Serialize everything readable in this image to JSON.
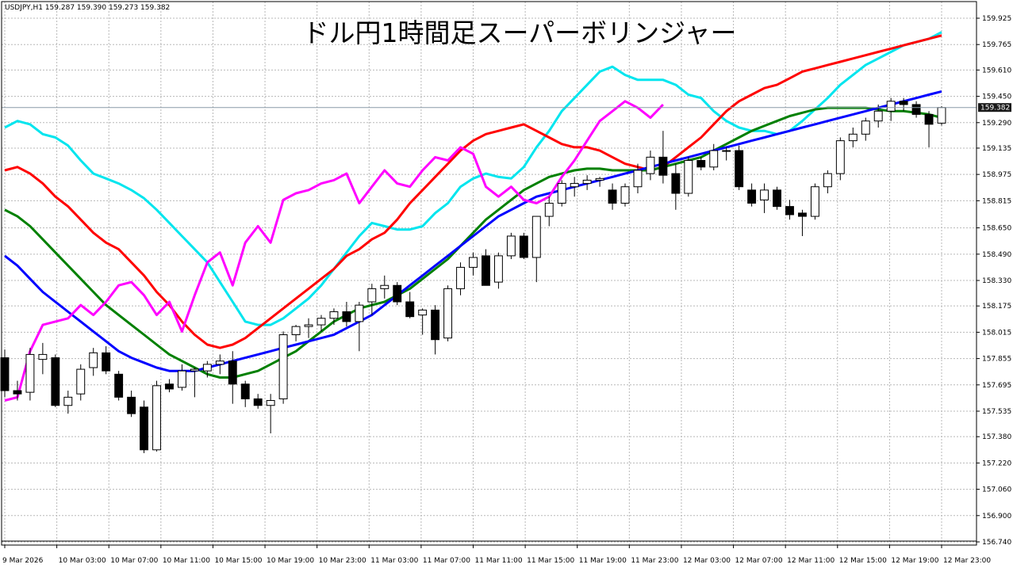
{
  "header": {
    "symbol_info": "USDJPY,H1  159.287 159.390 159.273 159.382",
    "title": "ドル円1時間足スーパーボリンジャー"
  },
  "chart_data": {
    "type": "candlestick",
    "symbol": "USDJPY",
    "timeframe": "H1",
    "current_price": 159.382,
    "current_price_label": "159.382",
    "ylim": [
      156.74,
      159.95
    ],
    "y_ticks": [
      "159.925",
      "159.765",
      "159.610",
      "159.450",
      "159.290",
      "159.135",
      "158.975",
      "158.815",
      "158.650",
      "158.490",
      "158.330",
      "158.175",
      "158.015",
      "157.855",
      "157.695",
      "157.535",
      "157.380",
      "157.220",
      "157.060",
      "156.900",
      "156.740"
    ],
    "x_ticks": [
      "9 Mar 2026",
      "10 Mar 03:00",
      "10 Mar 07:00",
      "10 Mar 11:00",
      "10 Mar 15:00",
      "10 Mar 19:00",
      "10 Mar 23:00",
      "11 Mar 03:00",
      "11 Mar 07:00",
      "11 Mar 11:00",
      "11 Mar 15:00",
      "11 Mar 19:00",
      "11 Mar 23:00",
      "12 Mar 03:00",
      "12 Mar 07:00",
      "12 Mar 11:00",
      "12 Mar 15:00",
      "12 Mar 19:00",
      "12 Mar 23:00"
    ],
    "grid": true,
    "candles": [
      [
        157.86,
        157.91,
        157.62,
        157.66
      ],
      [
        157.66,
        157.72,
        157.6,
        157.64
      ],
      [
        157.65,
        157.92,
        157.6,
        157.88
      ],
      [
        157.85,
        157.95,
        157.76,
        157.88
      ],
      [
        157.86,
        157.88,
        157.56,
        157.57
      ],
      [
        157.57,
        157.66,
        157.52,
        157.62
      ],
      [
        157.64,
        157.82,
        157.6,
        157.79
      ],
      [
        157.8,
        157.92,
        157.75,
        157.89
      ],
      [
        157.89,
        157.93,
        157.76,
        157.78
      ],
      [
        157.76,
        157.78,
        157.6,
        157.62
      ],
      [
        157.62,
        157.66,
        157.5,
        157.52
      ],
      [
        157.56,
        157.6,
        157.28,
        157.3
      ],
      [
        157.3,
        157.72,
        157.29,
        157.69
      ],
      [
        157.7,
        157.73,
        157.65,
        157.67
      ],
      [
        157.68,
        157.82,
        157.66,
        157.78
      ],
      [
        157.78,
        157.8,
        157.62,
        157.79
      ],
      [
        157.78,
        157.84,
        157.74,
        157.82
      ],
      [
        157.82,
        157.88,
        157.76,
        157.84
      ],
      [
        157.84,
        157.9,
        157.58,
        157.7
      ],
      [
        157.7,
        157.72,
        157.56,
        157.61
      ],
      [
        157.61,
        157.64,
        157.55,
        157.57
      ],
      [
        157.57,
        157.64,
        157.4,
        157.6
      ],
      [
        157.61,
        158.02,
        157.58,
        158.0
      ],
      [
        158.0,
        158.06,
        157.96,
        158.05
      ],
      [
        158.05,
        158.1,
        157.98,
        158.06
      ],
      [
        158.06,
        158.12,
        158.02,
        158.1
      ],
      [
        158.1,
        158.16,
        158.06,
        158.14
      ],
      [
        158.14,
        158.2,
        158.05,
        158.08
      ],
      [
        158.08,
        158.2,
        157.9,
        158.18
      ],
      [
        158.2,
        158.31,
        158.12,
        158.28
      ],
      [
        158.28,
        158.36,
        158.22,
        158.3
      ],
      [
        158.3,
        158.32,
        158.18,
        158.2
      ],
      [
        158.2,
        158.26,
        158.1,
        158.11
      ],
      [
        158.12,
        158.16,
        158.0,
        158.15
      ],
      [
        158.15,
        158.18,
        157.88,
        157.97
      ],
      [
        157.98,
        158.3,
        157.96,
        158.28
      ],
      [
        158.28,
        158.44,
        158.24,
        158.41
      ],
      [
        158.41,
        158.5,
        158.36,
        158.47
      ],
      [
        158.48,
        158.52,
        158.3,
        158.3
      ],
      [
        158.32,
        158.5,
        158.28,
        158.48
      ],
      [
        158.48,
        158.62,
        158.46,
        158.6
      ],
      [
        158.6,
        158.62,
        158.46,
        158.47
      ],
      [
        158.47,
        158.72,
        158.32,
        158.72
      ],
      [
        158.72,
        158.84,
        158.66,
        158.8
      ],
      [
        158.8,
        158.94,
        158.78,
        158.92
      ],
      [
        158.9,
        158.96,
        158.84,
        158.92
      ],
      [
        158.92,
        158.97,
        158.88,
        158.94
      ],
      [
        158.94,
        158.96,
        158.9,
        158.95
      ],
      [
        158.88,
        158.92,
        158.76,
        158.8
      ],
      [
        158.8,
        158.92,
        158.78,
        158.9
      ],
      [
        158.9,
        159.04,
        158.86,
        159.0
      ],
      [
        158.98,
        159.12,
        158.94,
        159.08
      ],
      [
        159.08,
        159.24,
        158.92,
        158.97
      ],
      [
        158.98,
        159.04,
        158.76,
        158.86
      ],
      [
        158.86,
        159.08,
        158.84,
        159.06
      ],
      [
        159.06,
        159.08,
        159.0,
        159.02
      ],
      [
        159.02,
        159.16,
        159.0,
        159.12
      ],
      [
        159.12,
        159.14,
        159.06,
        159.12
      ],
      [
        159.12,
        159.15,
        158.88,
        158.9
      ],
      [
        158.88,
        158.92,
        158.78,
        158.8
      ],
      [
        158.82,
        158.92,
        158.74,
        158.88
      ],
      [
        158.88,
        158.9,
        158.76,
        158.78
      ],
      [
        158.78,
        158.82,
        158.7,
        158.73
      ],
      [
        158.74,
        158.76,
        158.6,
        158.72
      ],
      [
        158.72,
        158.92,
        158.7,
        158.9
      ],
      [
        158.9,
        159.0,
        158.86,
        158.98
      ],
      [
        158.98,
        159.2,
        158.94,
        159.18
      ],
      [
        159.18,
        159.26,
        159.14,
        159.22
      ],
      [
        159.22,
        159.32,
        159.18,
        159.3
      ],
      [
        159.3,
        159.4,
        159.26,
        159.36
      ],
      [
        159.36,
        159.44,
        159.3,
        159.42
      ],
      [
        159.42,
        159.44,
        159.36,
        159.4
      ],
      [
        159.4,
        159.42,
        159.32,
        159.34
      ],
      [
        159.34,
        159.36,
        159.14,
        159.28
      ],
      [
        159.287,
        159.39,
        159.273,
        159.382
      ]
    ],
    "series": [
      {
        "name": "",
        "color": "#00e5ee",
        "values": [
          159.26,
          159.3,
          159.28,
          159.22,
          159.2,
          159.15,
          159.06,
          158.98,
          158.95,
          158.92,
          158.88,
          158.83,
          158.76,
          158.68,
          158.6,
          158.52,
          158.44,
          158.32,
          158.2,
          158.08,
          158.06,
          158.06,
          158.1,
          158.16,
          158.22,
          158.3,
          158.4,
          158.5,
          158.6,
          158.68,
          158.66,
          158.64,
          158.64,
          158.66,
          158.74,
          158.8,
          158.9,
          158.95,
          158.98,
          158.96,
          158.95,
          159.02,
          159.14,
          159.24,
          159.36,
          159.44,
          159.52,
          159.6,
          159.63,
          159.58,
          159.55,
          159.55,
          159.55,
          159.52,
          159.46,
          159.44,
          159.36,
          159.3,
          159.26,
          159.24,
          159.24,
          159.22,
          159.24,
          159.3,
          159.37,
          159.44,
          159.52,
          159.58,
          159.64,
          159.68,
          159.72,
          159.76,
          159.78,
          159.8,
          159.84
        ]
      },
      {
        "name": "",
        "color": "#ff0000",
        "values": [
          159.0,
          159.02,
          158.98,
          158.92,
          158.84,
          158.78,
          158.7,
          158.62,
          158.56,
          158.52,
          158.44,
          158.36,
          158.26,
          158.18,
          158.08,
          158.0,
          157.94,
          157.92,
          157.94,
          157.98,
          158.04,
          158.1,
          158.16,
          158.22,
          158.28,
          158.34,
          158.4,
          158.48,
          158.52,
          158.58,
          158.62,
          158.7,
          158.8,
          158.88,
          158.96,
          159.04,
          159.12,
          159.18,
          159.22,
          159.24,
          159.26,
          159.28,
          159.24,
          159.2,
          159.16,
          159.14,
          159.14,
          159.12,
          159.08,
          159.04,
          159.02,
          159.0,
          159.02,
          159.08,
          159.14,
          159.2,
          159.28,
          159.36,
          159.42,
          159.46,
          159.5,
          159.52,
          159.56,
          159.6,
          159.62,
          159.64,
          159.66,
          159.68,
          159.7,
          159.72,
          159.74,
          159.76,
          159.78,
          159.8,
          159.82
        ]
      },
      {
        "name": "",
        "color": "#008000",
        "values": [
          158.76,
          158.72,
          158.66,
          158.58,
          158.5,
          158.42,
          158.34,
          158.26,
          158.18,
          158.12,
          158.06,
          158.0,
          157.94,
          157.88,
          157.84,
          157.8,
          157.76,
          157.74,
          157.74,
          157.76,
          157.78,
          157.82,
          157.86,
          157.9,
          157.96,
          158.02,
          158.08,
          158.12,
          158.16,
          158.18,
          158.2,
          158.24,
          158.28,
          158.34,
          158.4,
          158.46,
          158.54,
          158.62,
          158.7,
          158.76,
          158.82,
          158.88,
          158.92,
          158.96,
          158.98,
          159.0,
          159.01,
          159.01,
          159.0,
          159.0,
          159.0,
          159.0,
          159.02,
          159.04,
          159.06,
          159.08,
          159.12,
          159.16,
          159.2,
          159.24,
          159.27,
          159.3,
          159.33,
          159.35,
          159.37,
          159.38,
          159.38,
          159.38,
          159.38,
          159.37,
          159.36,
          159.36,
          159.35,
          159.34,
          159.32
        ]
      },
      {
        "name": "",
        "color": "#0000ff",
        "values": [
          158.48,
          158.42,
          158.34,
          158.26,
          158.2,
          158.14,
          158.08,
          158.02,
          157.96,
          157.9,
          157.86,
          157.83,
          157.8,
          157.78,
          157.78,
          157.78,
          157.8,
          157.82,
          157.84,
          157.86,
          157.88,
          157.9,
          157.92,
          157.94,
          157.96,
          157.98,
          158.0,
          158.04,
          158.08,
          158.12,
          158.18,
          158.24,
          158.3,
          158.36,
          158.42,
          158.48,
          158.54,
          158.6,
          158.66,
          158.72,
          158.76,
          158.8,
          158.84,
          158.86,
          158.88,
          158.9,
          158.92,
          158.94,
          158.96,
          158.98,
          159.0,
          159.02,
          159.04,
          159.06,
          159.08,
          159.1,
          159.12,
          159.14,
          159.16,
          159.18,
          159.2,
          159.22,
          159.24,
          159.26,
          159.28,
          159.3,
          159.32,
          159.34,
          159.36,
          159.38,
          159.4,
          159.42,
          159.44,
          159.46,
          159.48
        ]
      },
      {
        "name": "",
        "color": "#ff00ff",
        "values": [
          157.6,
          157.62,
          157.9,
          158.06,
          158.08,
          158.1,
          158.18,
          158.12,
          158.2,
          158.3,
          158.32,
          158.24,
          158.12,
          158.2,
          158.02,
          158.24,
          158.44,
          158.5,
          158.3,
          158.56,
          158.66,
          158.56,
          158.82,
          158.86,
          158.88,
          158.92,
          158.94,
          158.98,
          158.8,
          158.9,
          159.0,
          158.92,
          158.9,
          159.0,
          159.08,
          159.06,
          159.14,
          159.1,
          158.9,
          158.84,
          158.9,
          158.82,
          158.8,
          158.84,
          158.96,
          159.06,
          159.18,
          159.3,
          159.36,
          159.42,
          159.38,
          159.32,
          159.4
        ]
      }
    ]
  }
}
